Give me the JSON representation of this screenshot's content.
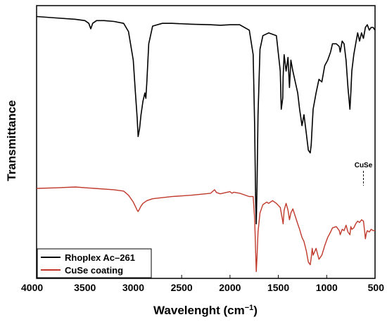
{
  "chart_data": {
    "type": "line",
    "title": "",
    "xlabel": "Wavelenght (cm",
    "xlabel_sup": "−1",
    "xlabel_close": ")",
    "ylabel": "Transmittance",
    "xlim": [
      4000,
      500
    ],
    "x_reversed": true,
    "ylim": [
      0,
      1
    ],
    "y_ticks_shown": false,
    "x_ticks": [
      4000,
      3500,
      3000,
      2500,
      2000,
      1500,
      1000,
      500
    ],
    "grid": false,
    "legend_position": "bottom-left",
    "series": [
      {
        "name": "Rhoplex Ac–261",
        "color": "#000000",
        "x": [
          4000,
          3800,
          3600,
          3500,
          3460,
          3440,
          3420,
          3380,
          3300,
          3200,
          3100,
          3050,
          3000,
          2980,
          2960,
          2950,
          2935,
          2920,
          2900,
          2880,
          2870,
          2860,
          2840,
          2800,
          2700,
          2600,
          2400,
          2200,
          2100,
          2000,
          1900,
          1800,
          1760,
          1745,
          1735,
          1728,
          1720,
          1710,
          1690,
          1660,
          1600,
          1520,
          1480,
          1470,
          1455,
          1450,
          1440,
          1420,
          1400,
          1385,
          1370,
          1350,
          1300,
          1280,
          1255,
          1235,
          1210,
          1190,
          1170,
          1160,
          1150,
          1140,
          1110,
          1080,
          1050,
          1020,
          990,
          960,
          940,
          900,
          870,
          860,
          840,
          820,
          800,
          780,
          760,
          750,
          740,
          720,
          700,
          680,
          660,
          640,
          620,
          600,
          580,
          560,
          540,
          520,
          500
        ],
        "y": [
          0.96,
          0.955,
          0.95,
          0.945,
          0.935,
          0.915,
          0.935,
          0.945,
          0.945,
          0.942,
          0.935,
          0.905,
          0.8,
          0.69,
          0.59,
          0.52,
          0.55,
          0.6,
          0.65,
          0.68,
          0.66,
          0.72,
          0.86,
          0.925,
          0.935,
          0.935,
          0.932,
          0.93,
          0.928,
          0.93,
          0.93,
          0.91,
          0.82,
          0.56,
          0.29,
          0.2,
          0.34,
          0.6,
          0.84,
          0.89,
          0.9,
          0.89,
          0.76,
          0.62,
          0.66,
          0.74,
          0.82,
          0.76,
          0.81,
          0.7,
          0.8,
          0.76,
          0.68,
          0.62,
          0.56,
          0.6,
          0.53,
          0.47,
          0.46,
          0.49,
          0.56,
          0.62,
          0.68,
          0.73,
          0.72,
          0.78,
          0.8,
          0.83,
          0.86,
          0.86,
          0.85,
          0.83,
          0.87,
          0.86,
          0.8,
          0.7,
          0.62,
          0.68,
          0.76,
          0.82,
          0.86,
          0.9,
          0.87,
          0.9,
          0.88,
          0.92,
          0.93,
          0.91,
          0.92,
          0.92,
          0.91
        ]
      },
      {
        "name": "CuSe coating",
        "color": "#c0392b",
        "x": [
          4000,
          3800,
          3600,
          3400,
          3200,
          3100,
          3050,
          3000,
          2980,
          2960,
          2950,
          2935,
          2920,
          2900,
          2880,
          2860,
          2800,
          2600,
          2400,
          2200,
          2160,
          2140,
          2100,
          2000,
          1980,
          1960,
          1900,
          1800,
          1760,
          1745,
          1735,
          1728,
          1720,
          1710,
          1690,
          1660,
          1620,
          1600,
          1560,
          1520,
          1480,
          1460,
          1450,
          1440,
          1420,
          1400,
          1385,
          1370,
          1350,
          1300,
          1280,
          1255,
          1235,
          1210,
          1190,
          1170,
          1160,
          1150,
          1140,
          1110,
          1080,
          1050,
          1020,
          990,
          960,
          940,
          900,
          870,
          860,
          840,
          820,
          800,
          780,
          760,
          750,
          740,
          720,
          700,
          680,
          660,
          640,
          620,
          610,
          600,
          590,
          580,
          560,
          540,
          520,
          500
        ],
        "y": [
          0.33,
          0.332,
          0.335,
          0.33,
          0.325,
          0.32,
          0.305,
          0.28,
          0.265,
          0.25,
          0.245,
          0.255,
          0.265,
          0.275,
          0.28,
          0.285,
          0.292,
          0.3,
          0.305,
          0.312,
          0.325,
          0.315,
          0.31,
          0.318,
          0.312,
          0.316,
          0.312,
          0.3,
          0.3,
          0.22,
          0.1,
          0.025,
          0.08,
          0.17,
          0.24,
          0.27,
          0.28,
          0.275,
          0.285,
          0.275,
          0.26,
          0.22,
          0.2,
          0.25,
          0.275,
          0.25,
          0.215,
          0.24,
          0.255,
          0.2,
          0.18,
          0.15,
          0.135,
          0.1,
          0.06,
          0.05,
          0.075,
          0.11,
          0.085,
          0.11,
          0.07,
          0.085,
          0.12,
          0.15,
          0.17,
          0.185,
          0.19,
          0.175,
          0.16,
          0.18,
          0.175,
          0.195,
          0.17,
          0.16,
          0.19,
          0.18,
          0.185,
          0.2,
          0.21,
          0.205,
          0.215,
          0.21,
          0.18,
          0.145,
          0.165,
          0.175,
          0.17,
          0.18,
          0.175,
          0.175
        ]
      }
    ],
    "annotations": [
      {
        "text": "CuSe",
        "x": 620,
        "y": 0.33
      }
    ]
  }
}
